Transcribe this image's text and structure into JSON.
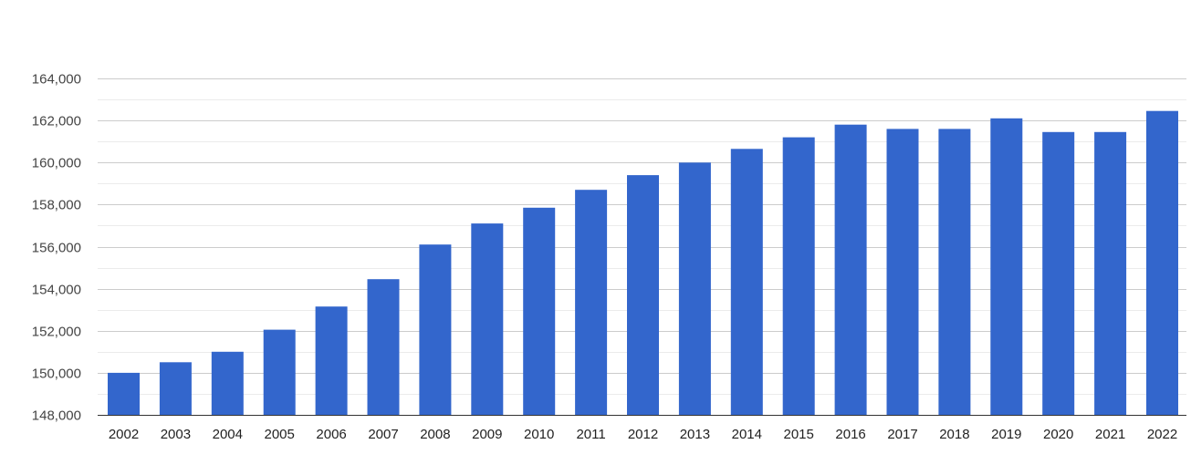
{
  "chart_data": {
    "type": "bar",
    "title": "",
    "xlabel": "",
    "ylabel": "",
    "categories": [
      "2002",
      "2003",
      "2004",
      "2005",
      "2006",
      "2007",
      "2008",
      "2009",
      "2010",
      "2011",
      "2012",
      "2013",
      "2014",
      "2015",
      "2016",
      "2017",
      "2018",
      "2019",
      "2020",
      "2021",
      "2022"
    ],
    "values": [
      150000,
      150500,
      151000,
      152050,
      153150,
      154450,
      156100,
      157100,
      157850,
      158700,
      159400,
      160000,
      160650,
      161200,
      161800,
      161600,
      161600,
      162100,
      161450,
      161450,
      162450
    ],
    "ylim": [
      148000,
      164000
    ],
    "yticks": [
      148000,
      150000,
      152000,
      154000,
      156000,
      158000,
      160000,
      162000,
      164000
    ],
    "ytick_labels": [
      "148,000",
      "150,000",
      "152,000",
      "154,000",
      "156,000",
      "158,000",
      "160,000",
      "162,000",
      "164,000"
    ],
    "grid": true,
    "legend": "none",
    "colors": {
      "bar": "#3366cc",
      "major_grid": "#cccccc",
      "minor_grid": "#ebebeb",
      "axis": "#333333"
    }
  }
}
